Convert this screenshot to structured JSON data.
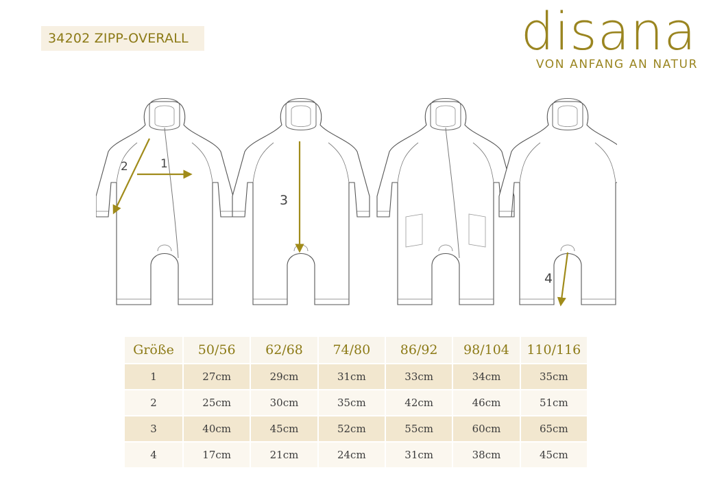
{
  "title": "34202 ZIPP-OVERALL",
  "brand": {
    "name": "disana",
    "tagline": "VON ANFANG AN NATUR",
    "color": "#9a8520"
  },
  "measure_labels": [
    "1",
    "2",
    "3",
    "4"
  ],
  "size_table": {
    "header": [
      "Größe",
      "50/56",
      "62/68",
      "74/80",
      "86/92",
      "98/104",
      "110/116"
    ],
    "rows": [
      [
        "1",
        "27cm",
        "29cm",
        "31cm",
        "33cm",
        "34cm",
        "35cm"
      ],
      [
        "2",
        "25cm",
        "30cm",
        "35cm",
        "42cm",
        "46cm",
        "51cm"
      ],
      [
        "3",
        "40cm",
        "45cm",
        "52cm",
        "55cm",
        "60cm",
        "65cm"
      ],
      [
        "4",
        "17cm",
        "21cm",
        "24cm",
        "31cm",
        "38cm",
        "45cm"
      ]
    ]
  }
}
